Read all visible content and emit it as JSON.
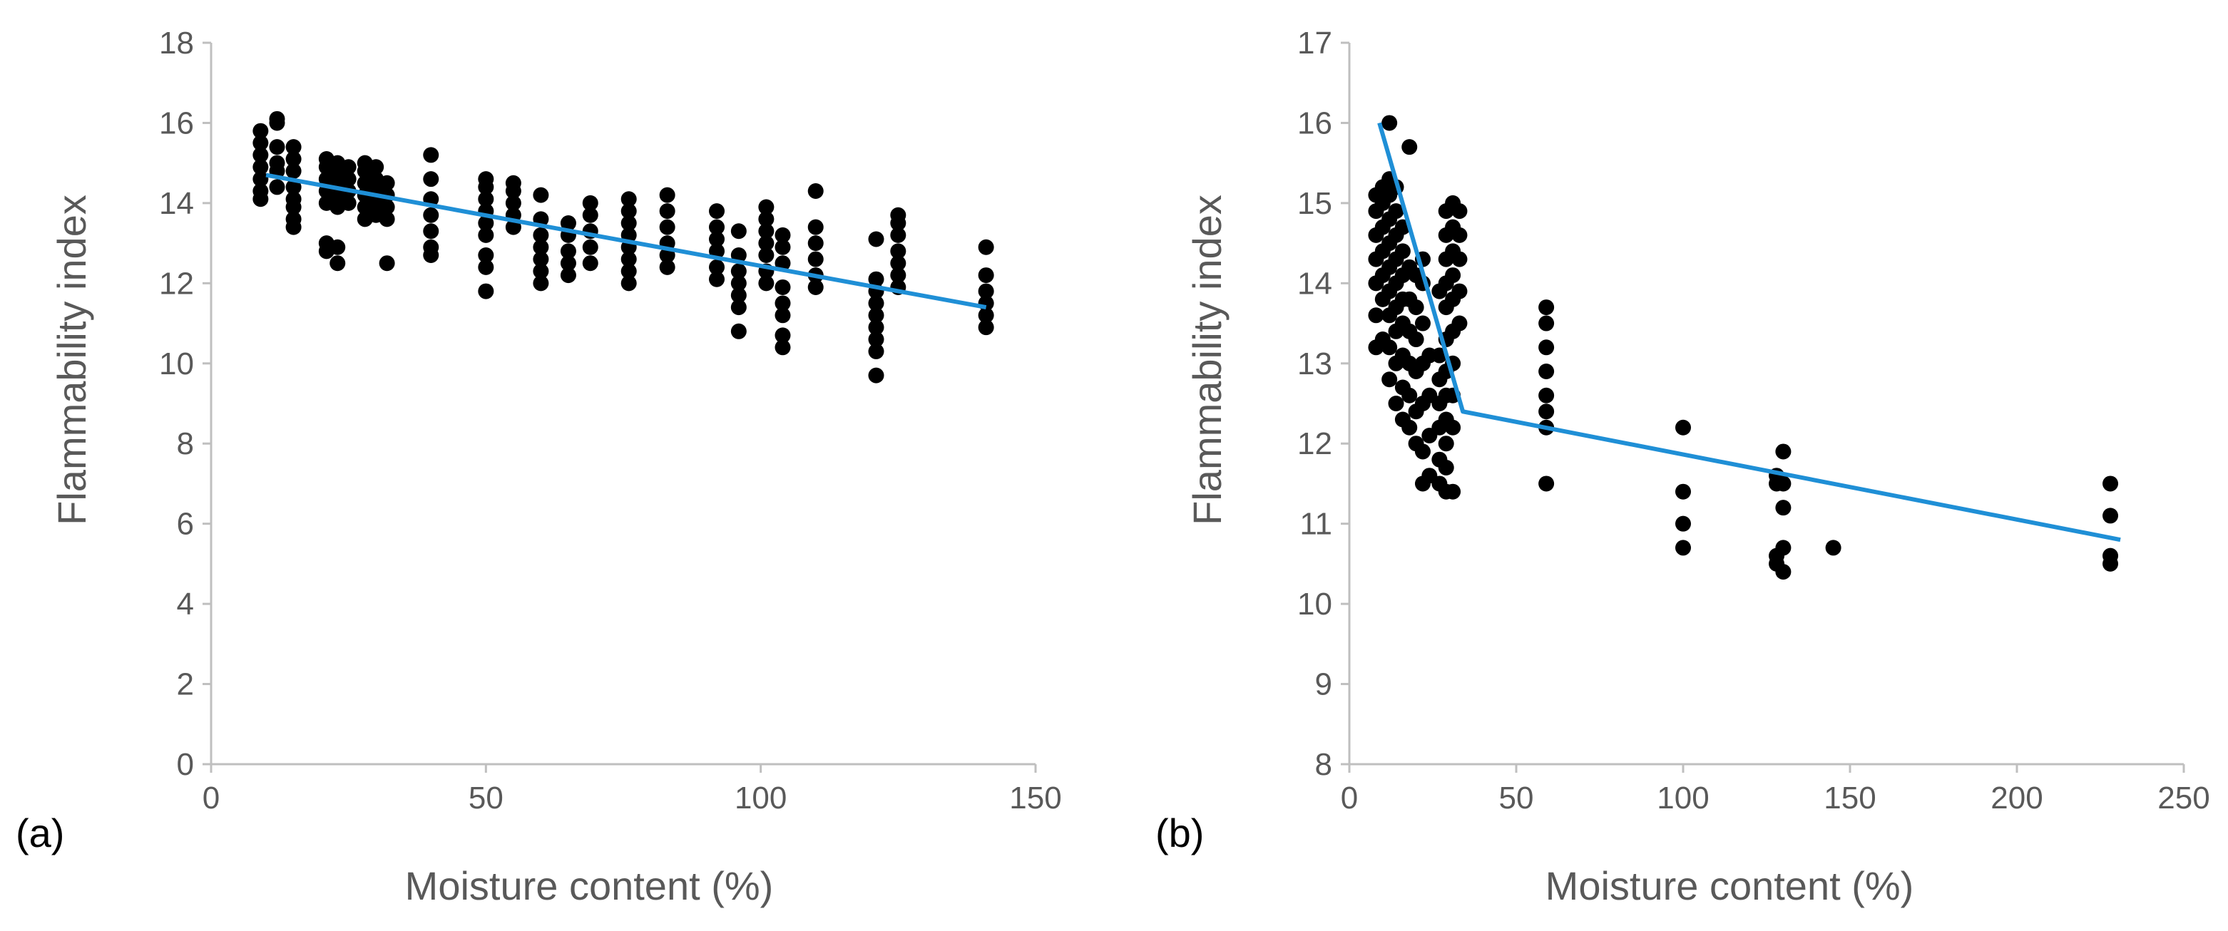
{
  "chart_data": [
    {
      "type": "scatter",
      "panel_label": "(a)",
      "xlabel": "Moisture content (%)",
      "ylabel": "Flammability index",
      "xlim": [
        0,
        150
      ],
      "ylim": [
        0,
        18
      ],
      "xticks": [
        0,
        50,
        100,
        150
      ],
      "yticks": [
        0,
        2,
        4,
        6,
        8,
        10,
        12,
        14,
        16,
        18
      ],
      "colors": {
        "points": "#000000",
        "trend": "#1f8fd6",
        "axis": "#bfbfbf",
        "text": "#595959"
      },
      "trendline": {
        "x": [
          10,
          141
        ],
        "y": [
          14.7,
          11.4
        ]
      },
      "point_groups": [
        {
          "x": 9,
          "y": [
            14.1,
            14.3,
            14.6,
            14.9,
            15.2,
            15.5,
            15.8
          ]
        },
        {
          "x": 12,
          "y": [
            14.4,
            14.8,
            15.0,
            15.4,
            16.0,
            16.1
          ]
        },
        {
          "x": 15,
          "y": [
            13.4,
            13.6,
            13.9,
            14.1,
            14.4,
            14.8,
            15.1,
            15.4
          ]
        },
        {
          "x": 21,
          "y": [
            12.8,
            13.0,
            14.0,
            14.3,
            14.6,
            14.9,
            15.1
          ]
        },
        {
          "x": 23,
          "y": [
            12.5,
            12.9,
            13.9,
            14.2,
            14.5,
            14.8,
            15.0
          ]
        },
        {
          "x": 25,
          "y": [
            14.0,
            14.3,
            14.6,
            14.9
          ]
        },
        {
          "x": 28,
          "y": [
            13.6,
            13.9,
            14.2,
            14.5,
            14.8,
            15.0
          ]
        },
        {
          "x": 30,
          "y": [
            13.7,
            14.0,
            14.3,
            14.6,
            14.9
          ]
        },
        {
          "x": 32,
          "y": [
            12.5,
            13.6,
            13.9,
            14.2,
            14.5
          ]
        },
        {
          "x": 40,
          "y": [
            12.7,
            12.9,
            13.3,
            13.7,
            14.1,
            14.6,
            15.2
          ]
        },
        {
          "x": 50,
          "y": [
            11.8,
            12.4,
            12.7,
            13.2,
            13.5,
            13.8,
            14.1,
            14.4,
            14.6
          ]
        },
        {
          "x": 55,
          "y": [
            13.4,
            13.7,
            14.0,
            14.3,
            14.5
          ]
        },
        {
          "x": 60,
          "y": [
            12.0,
            12.3,
            12.6,
            12.9,
            13.2,
            13.6,
            14.2
          ]
        },
        {
          "x": 65,
          "y": [
            12.2,
            12.5,
            12.8,
            13.2,
            13.5
          ]
        },
        {
          "x": 69,
          "y": [
            12.5,
            12.9,
            13.3,
            13.7,
            14.0
          ]
        },
        {
          "x": 76,
          "y": [
            12.0,
            12.3,
            12.6,
            12.9,
            13.2,
            13.5,
            13.8,
            14.1
          ]
        },
        {
          "x": 83,
          "y": [
            12.4,
            12.7,
            13.0,
            13.4,
            13.8,
            14.2
          ]
        },
        {
          "x": 92,
          "y": [
            12.1,
            12.4,
            12.8,
            13.1,
            13.4,
            13.8
          ]
        },
        {
          "x": 96,
          "y": [
            10.8,
            11.4,
            11.7,
            12.0,
            12.3,
            12.7,
            13.3
          ]
        },
        {
          "x": 101,
          "y": [
            12.0,
            12.3,
            12.7,
            13.0,
            13.3,
            13.6,
            13.9
          ]
        },
        {
          "x": 104,
          "y": [
            10.4,
            10.7,
            11.2,
            11.5,
            11.9,
            12.5,
            12.9,
            13.2
          ]
        },
        {
          "x": 110,
          "y": [
            11.9,
            12.2,
            12.6,
            13.0,
            13.4,
            14.3
          ]
        },
        {
          "x": 121,
          "y": [
            9.7,
            10.3,
            10.6,
            10.9,
            11.2,
            11.5,
            11.8,
            12.1,
            13.1
          ]
        },
        {
          "x": 125,
          "y": [
            11.9,
            12.2,
            12.5,
            12.8,
            13.2,
            13.5,
            13.7
          ]
        },
        {
          "x": 141,
          "y": [
            10.9,
            11.2,
            11.5,
            11.8,
            12.2,
            12.9
          ]
        }
      ]
    },
    {
      "type": "scatter",
      "panel_label": "(b)",
      "xlabel": "Moisture content (%)",
      "ylabel": "Flammability index",
      "xlim": [
        0,
        250
      ],
      "ylim": [
        8,
        17
      ],
      "xticks": [
        0,
        50,
        100,
        150,
        200,
        250
      ],
      "yticks": [
        8,
        9,
        10,
        11,
        12,
        13,
        14,
        15,
        16,
        17
      ],
      "colors": {
        "points": "#000000",
        "trend": "#1f8fd6",
        "axis": "#bfbfbf",
        "text": "#595959"
      },
      "trendline": {
        "x": [
          9,
          34,
          231
        ],
        "y": [
          16.0,
          12.4,
          10.8
        ]
      },
      "point_groups": [
        {
          "x": 8,
          "y": [
            13.2,
            13.6,
            14.0,
            14.3,
            14.6,
            14.9,
            15.1
          ]
        },
        {
          "x": 10,
          "y": [
            13.3,
            13.8,
            14.1,
            14.4,
            14.7,
            15.0,
            15.2
          ]
        },
        {
          "x": 12,
          "y": [
            12.8,
            13.2,
            13.6,
            13.9,
            14.2,
            14.5,
            14.8,
            15.1,
            15.3,
            16.0
          ]
        },
        {
          "x": 14,
          "y": [
            12.5,
            13.0,
            13.4,
            13.7,
            14.0,
            14.3,
            14.6,
            14.9,
            15.2
          ]
        },
        {
          "x": 16,
          "y": [
            12.3,
            12.7,
            13.1,
            13.5,
            13.8,
            14.1,
            14.4,
            14.7
          ]
        },
        {
          "x": 18,
          "y": [
            12.2,
            12.6,
            13.0,
            13.4,
            13.8,
            14.2,
            15.7
          ]
        },
        {
          "x": 20,
          "y": [
            12.0,
            12.4,
            12.9,
            13.3,
            13.7,
            14.1
          ]
        },
        {
          "x": 22,
          "y": [
            11.5,
            11.9,
            12.5,
            13.0,
            13.5,
            14.0,
            14.3
          ]
        },
        {
          "x": 24,
          "y": [
            11.6,
            12.1,
            12.6,
            13.1
          ]
        },
        {
          "x": 27,
          "y": [
            11.5,
            11.8,
            12.2,
            12.5,
            12.8,
            13.1,
            13.9
          ]
        },
        {
          "x": 29,
          "y": [
            11.4,
            11.7,
            12.0,
            12.3,
            12.6,
            12.9,
            13.3,
            13.7,
            14.0,
            14.3,
            14.6,
            14.9
          ]
        },
        {
          "x": 31,
          "y": [
            11.4,
            12.2,
            12.6,
            13.0,
            13.4,
            13.8,
            14.1,
            14.4,
            14.7,
            15.0
          ]
        },
        {
          "x": 33,
          "y": [
            13.5,
            13.9,
            14.3,
            14.6,
            14.9
          ]
        },
        {
          "x": 59,
          "y": [
            11.5,
            12.2,
            12.4,
            12.6,
            12.9,
            13.2,
            13.5,
            13.7
          ]
        },
        {
          "x": 100,
          "y": [
            10.7,
            11.0,
            11.4,
            12.2
          ]
        },
        {
          "x": 128,
          "y": [
            10.5,
            10.6,
            11.5,
            11.6
          ]
        },
        {
          "x": 130,
          "y": [
            10.4,
            10.7,
            11.2,
            11.5,
            11.9
          ]
        },
        {
          "x": 145,
          "y": [
            10.7
          ]
        },
        {
          "x": 228,
          "y": [
            10.5,
            10.6,
            11.1,
            11.5
          ]
        }
      ]
    }
  ]
}
